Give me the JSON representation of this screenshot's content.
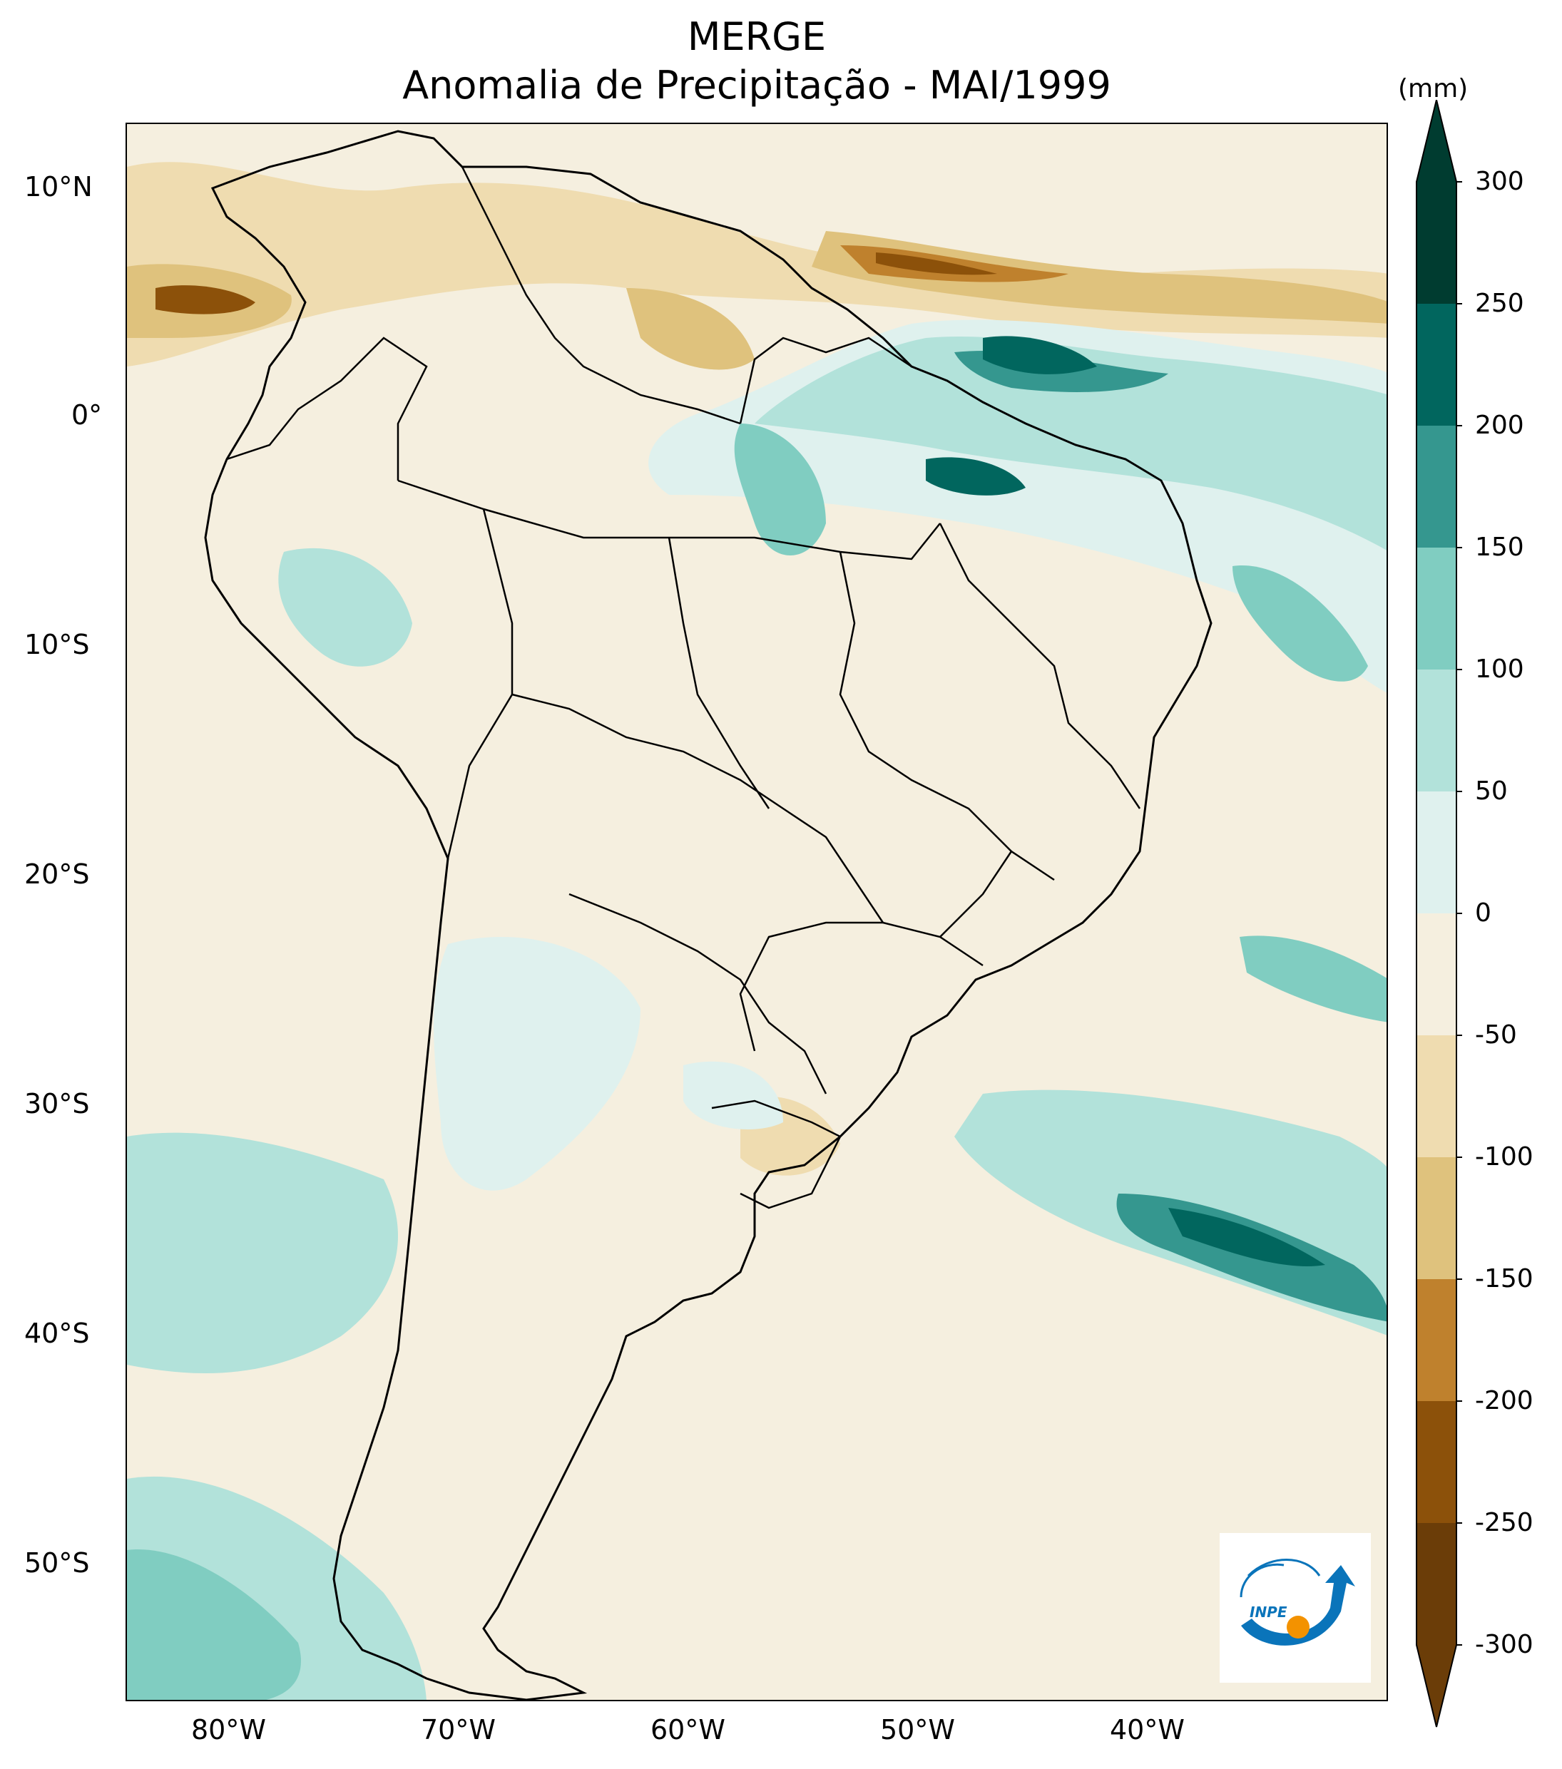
{
  "title": {
    "line1": "MERGE",
    "line2": "Anomalia de Precipitação - MAI/1999"
  },
  "map": {
    "lat_labels": [
      "10°N",
      "0°",
      "10°S",
      "20°S",
      "30°S",
      "40°S",
      "50°S"
    ],
    "lon_labels": [
      "80°W",
      "70°W",
      "60°W",
      "50°W",
      "40°W"
    ]
  },
  "colorbar": {
    "units": "(mm)",
    "levels": [
      "300",
      "250",
      "200",
      "150",
      "100",
      "50",
      "0",
      "-50",
      "-100",
      "-150",
      "-200",
      "-250",
      "-300"
    ],
    "colors": [
      "#003c30",
      "#01665e",
      "#35978f",
      "#80cdc1",
      "#b2e2da",
      "#dff1ee",
      "#f5efdf",
      "#efdcb0",
      "#dfc27d",
      "#bf812d",
      "#8c510a",
      "#6b3d08"
    ],
    "extend": "both"
  },
  "palette": {
    "background": "#f5efdf",
    "border": "#000000"
  },
  "logo": {
    "text": "INPE",
    "colors": [
      "#0a74ba",
      "#f39200"
    ]
  }
}
